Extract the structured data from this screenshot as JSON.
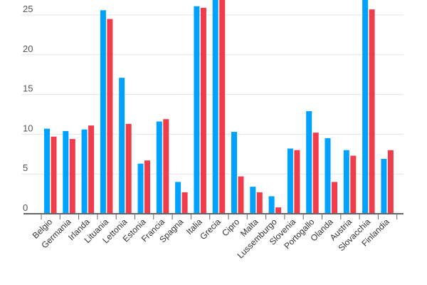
{
  "chart_data": {
    "type": "bar",
    "title": "",
    "xlabel": "",
    "ylabel": "",
    "ylim": [
      0,
      27
    ],
    "yticks": [
      "0",
      "5",
      "10",
      "15",
      "20",
      "25"
    ],
    "grid": true,
    "legend": "none",
    "categories": [
      "Belgio",
      "Germania",
      "Irlanda",
      "Lituania",
      "Lettonia",
      "Estonia",
      "Francia",
      "Spagna",
      "Italia",
      "Grecia",
      "Cipro",
      "Malta",
      "Lussemburgo",
      "Slovenia",
      "Portogallo",
      "Olanda",
      "Austria",
      "Slovacchia",
      "Finlandia"
    ],
    "series": [
      {
        "color": "#00a2ff",
        "values": [
          10.7,
          10.4,
          10.6,
          25.6,
          17.1,
          6.3,
          11.6,
          4.0,
          26.1,
          28,
          10.3,
          3.4,
          2.2,
          8.2,
          12.9,
          9.5,
          8.0,
          28,
          6.9
        ]
      },
      {
        "color": "#f03c4b",
        "values": [
          9.7,
          9.4,
          11.1,
          24.5,
          11.3,
          6.7,
          11.9,
          2.7,
          25.9,
          28,
          4.7,
          2.7,
          0.8,
          8.0,
          10.2,
          4.0,
          7.3,
          25.7,
          8.0
        ]
      }
    ]
  }
}
